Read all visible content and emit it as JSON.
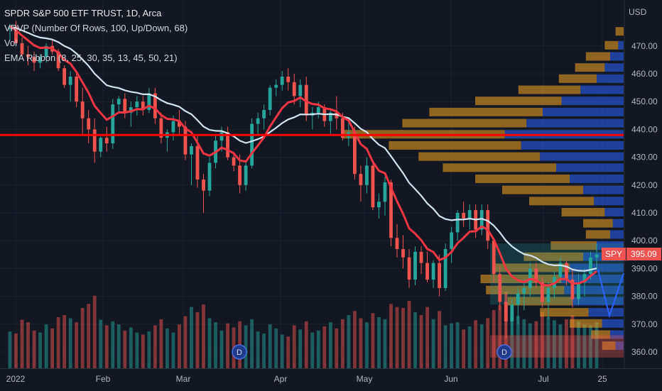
{
  "header": {
    "title": "SPDR S&P 500 ETF TRUST, 1D, Arca",
    "indicators": [
      "VRVP (Number Of Rows, 100, Up/Down, 68)",
      "Vol",
      "EMA Ribbon (8, 25, 30, 35, 13, 45, 50, 21)"
    ]
  },
  "price_axis": {
    "currency": "USD",
    "ticks": [
      "470.00",
      "460.00",
      "450.00",
      "440.00",
      "430.00",
      "420.00",
      "410.00",
      "400.00",
      "390.00",
      "380.00",
      "370.00",
      "360.00"
    ]
  },
  "time_axis": {
    "ticks": [
      "2022",
      "Feb",
      "Mar",
      "Apr",
      "May",
      "Jun",
      "Jul",
      "25"
    ]
  },
  "last_price": {
    "symbol": "SPY",
    "value": "395.09"
  },
  "dividend_markers": [
    "D",
    "D"
  ],
  "colors": {
    "up": "#26a69a",
    "down": "#ef5350",
    "vp_up": "#2962ff",
    "vp_down": "#f5a623",
    "ema_fast": "#f23645",
    "ema_slow": "#d1e3f0",
    "hline": "#ff0000",
    "background": "#131722"
  },
  "chart_data": {
    "type": "candlestick",
    "ylim": [
      356,
      480
    ],
    "horizontal_line": 438,
    "x_period": "2022-01-03 to 2022-07-22",
    "candles": [
      [
        476,
        478,
        472,
        477
      ],
      [
        477,
        479,
        470,
        471
      ],
      [
        471,
        473,
        466,
        467
      ],
      [
        467,
        470,
        463,
        466
      ],
      [
        466,
        468,
        461,
        464
      ],
      [
        464,
        467,
        462,
        466
      ],
      [
        466,
        471,
        464,
        470
      ],
      [
        470,
        472,
        467,
        468
      ],
      [
        468,
        469,
        461,
        462
      ],
      [
        462,
        463,
        455,
        456
      ],
      [
        456,
        461,
        450,
        459
      ],
      [
        459,
        460,
        448,
        450
      ],
      [
        450,
        455,
        438,
        444
      ],
      [
        444,
        447,
        435,
        440
      ],
      [
        440,
        444,
        428,
        432
      ],
      [
        432,
        438,
        430,
        437
      ],
      [
        437,
        441,
        432,
        435
      ],
      [
        435,
        451,
        433,
        449
      ],
      [
        449,
        452,
        446,
        451
      ],
      [
        451,
        453,
        444,
        446
      ],
      [
        446,
        450,
        441,
        448
      ],
      [
        448,
        452,
        445,
        450
      ],
      [
        450,
        452,
        445,
        447
      ],
      [
        447,
        455,
        446,
        453
      ],
      [
        453,
        455,
        442,
        444
      ],
      [
        444,
        446,
        435,
        437
      ],
      [
        437,
        440,
        432,
        439
      ],
      [
        439,
        445,
        436,
        443
      ],
      [
        443,
        447,
        438,
        441
      ],
      [
        441,
        443,
        429,
        431
      ],
      [
        431,
        435,
        420,
        434
      ],
      [
        434,
        438,
        419,
        422
      ],
      [
        422,
        424,
        410,
        418
      ],
      [
        418,
        430,
        416,
        428
      ],
      [
        428,
        438,
        426,
        436
      ],
      [
        436,
        441,
        432,
        439
      ],
      [
        439,
        441,
        429,
        430
      ],
      [
        430,
        432,
        425,
        427
      ],
      [
        427,
        431,
        417,
        420
      ],
      [
        420,
        429,
        418,
        427
      ],
      [
        427,
        444,
        426,
        442
      ],
      [
        442,
        446,
        438,
        444
      ],
      [
        444,
        449,
        440,
        447
      ],
      [
        447,
        456,
        445,
        455
      ],
      [
        455,
        458,
        452,
        456
      ],
      [
        456,
        461,
        454,
        459
      ],
      [
        459,
        462,
        454,
        457
      ],
      [
        457,
        460,
        449,
        452
      ],
      [
        452,
        458,
        448,
        456
      ],
      [
        456,
        459,
        443,
        445
      ],
      [
        445,
        448,
        440,
        446
      ],
      [
        446,
        450,
        444,
        448
      ],
      [
        448,
        449,
        441,
        443
      ],
      [
        443,
        447,
        438,
        446
      ],
      [
        446,
        452,
        440,
        444
      ],
      [
        444,
        446,
        436,
        437
      ],
      [
        437,
        443,
        434,
        439
      ],
      [
        439,
        441,
        422,
        424
      ],
      [
        424,
        427,
        414,
        420
      ],
      [
        420,
        430,
        417,
        427
      ],
      [
        427,
        428,
        411,
        412
      ],
      [
        412,
        417,
        408,
        414
      ],
      [
        414,
        423,
        409,
        421
      ],
      [
        421,
        422,
        398,
        401
      ],
      [
        401,
        406,
        394,
        397
      ],
      [
        397,
        402,
        390,
        394
      ],
      [
        394,
        397,
        383,
        386
      ],
      [
        386,
        398,
        384,
        396
      ],
      [
        396,
        398,
        388,
        392
      ],
      [
        392,
        396,
        385,
        386
      ],
      [
        386,
        393,
        383,
        392
      ],
      [
        392,
        395,
        380,
        383
      ],
      [
        383,
        399,
        382,
        397
      ],
      [
        397,
        405,
        392,
        403
      ],
      [
        403,
        411,
        400,
        410
      ],
      [
        410,
        414,
        405,
        408
      ],
      [
        408,
        413,
        404,
        411
      ],
      [
        411,
        413,
        401,
        404
      ],
      [
        404,
        413,
        402,
        411
      ],
      [
        411,
        413,
        397,
        400
      ],
      [
        400,
        401,
        385,
        388
      ],
      [
        388,
        391,
        375,
        378
      ],
      [
        378,
        381,
        365,
        371
      ],
      [
        371,
        379,
        366,
        377
      ],
      [
        377,
        383,
        370,
        381
      ],
      [
        381,
        386,
        375,
        383
      ],
      [
        383,
        392,
        380,
        390
      ],
      [
        390,
        392,
        383,
        385
      ],
      [
        385,
        387,
        376,
        378
      ],
      [
        378,
        385,
        372,
        383
      ],
      [
        383,
        389,
        379,
        387
      ],
      [
        387,
        394,
        385,
        392
      ],
      [
        392,
        393,
        384,
        386
      ],
      [
        386,
        390,
        376,
        379
      ],
      [
        379,
        388,
        377,
        385
      ],
      [
        385,
        390,
        380,
        388
      ],
      [
        388,
        396,
        386,
        394
      ],
      [
        394,
        399,
        390,
        395
      ]
    ],
    "volumes": [
      72,
      68,
      95,
      90,
      74,
      70,
      86,
      78,
      100,
      104,
      98,
      90,
      118,
      126,
      142,
      95,
      84,
      92,
      86,
      74,
      80,
      70,
      66,
      72,
      84,
      96,
      78,
      70,
      86,
      102,
      120,
      110,
      125,
      98,
      90,
      74,
      88,
      80,
      92,
      84,
      96,
      72,
      68,
      86,
      78,
      66,
      62,
      84,
      76,
      92,
      70,
      74,
      82,
      90,
      78,
      96,
      104,
      112,
      98,
      90,
      108,
      100,
      96,
      126,
      120,
      118,
      132,
      110,
      104,
      120,
      96,
      112,
      84,
      88,
      90,
      76,
      82,
      94,
      86,
      98,
      114,
      124,
      150,
      108,
      102,
      96,
      88,
      92,
      110,
      100,
      94,
      86,
      96,
      104,
      92,
      86,
      84,
      90
    ],
    "volume_profile": {
      "levels": [
        [
          475,
          0,
          6
        ],
        [
          470,
          4,
          10
        ],
        [
          466,
          10,
          18
        ],
        [
          462,
          14,
          22
        ],
        [
          458,
          20,
          28
        ],
        [
          454,
          32,
          46
        ],
        [
          450,
          46,
          64
        ],
        [
          446,
          60,
          84
        ],
        [
          442,
          72,
          92
        ],
        [
          438,
          88,
          120
        ],
        [
          434,
          76,
          98
        ],
        [
          430,
          62,
          90
        ],
        [
          426,
          50,
          84
        ],
        [
          422,
          40,
          70
        ],
        [
          418,
          30,
          60
        ],
        [
          414,
          22,
          48
        ],
        [
          410,
          14,
          32
        ],
        [
          406,
          8,
          22
        ],
        [
          402,
          10,
          18
        ],
        [
          398,
          20,
          34
        ],
        [
          394,
          30,
          44
        ],
        [
          390,
          40,
          56
        ],
        [
          386,
          46,
          60
        ],
        [
          382,
          44,
          58
        ],
        [
          378,
          38,
          48
        ],
        [
          374,
          26,
          36
        ],
        [
          370,
          16,
          24
        ],
        [
          366,
          10,
          14
        ],
        [
          362,
          6,
          10
        ]
      ]
    }
  }
}
